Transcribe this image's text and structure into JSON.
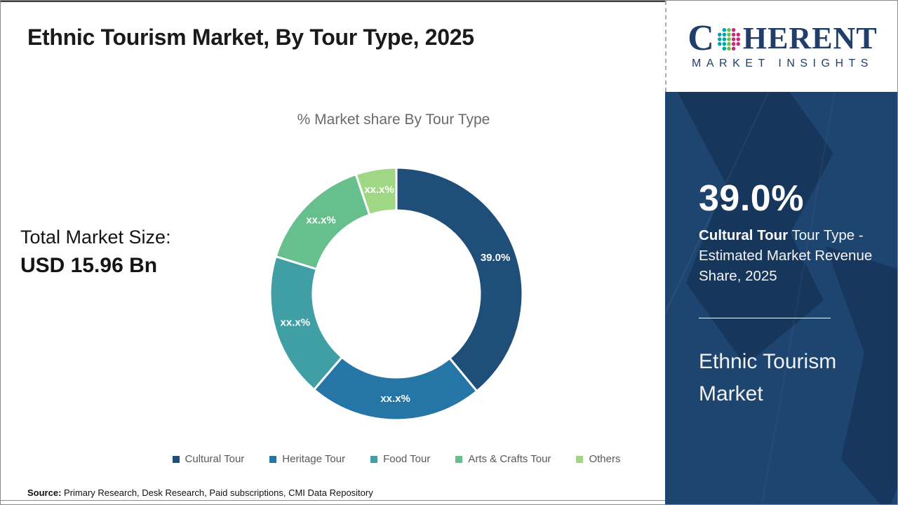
{
  "page": {
    "title": "Ethnic Tourism Market, By Tour Type, 2025",
    "source_label": "Source:",
    "source_text": " Primary Research, Desk Research, Paid subscriptions, CMI Data Repository"
  },
  "logo": {
    "brand_c": "C",
    "brand_rest": "HERENT",
    "tagline": "MARKET INSIGHTS",
    "brand_color": "#203e69",
    "dot_colors": [
      "#00a4ae",
      "#00a4ae",
      "#6cbe4b",
      "#c72c77",
      "#c72c77"
    ]
  },
  "left_panel": {
    "total_label": "Total Market Size:",
    "total_value": "USD 15.96 Bn"
  },
  "chart_data": {
    "type": "pie",
    "title": "% Market share By Tour Type",
    "donut": true,
    "inner_radius_ratio": 0.66,
    "start_angle_deg": 0,
    "direction": "clockwise",
    "legend_position": "bottom",
    "categories": [
      "Cultural Tour",
      "Heritage Tour",
      "Food Tour",
      "Arts & Crafts Tour",
      "Others"
    ],
    "values": [
      39.0,
      22.3,
      18.5,
      15.0,
      5.2
    ],
    "labels": [
      "39.0%",
      "xx.x%",
      "xx.x%",
      "xx.x%",
      "xx.x%"
    ],
    "colors": [
      "#1f4e79",
      "#2575a6",
      "#3f9fa4",
      "#68bf8e",
      "#a0d784"
    ]
  },
  "sidebar": {
    "stat_value": "39.0%",
    "stat_bold": "Cultural Tour",
    "stat_rest": " Tour Type - Estimated Market Revenue Share, 2025",
    "market_name": "Ethnic Tourism Market",
    "bg_color": "#1e4470"
  }
}
